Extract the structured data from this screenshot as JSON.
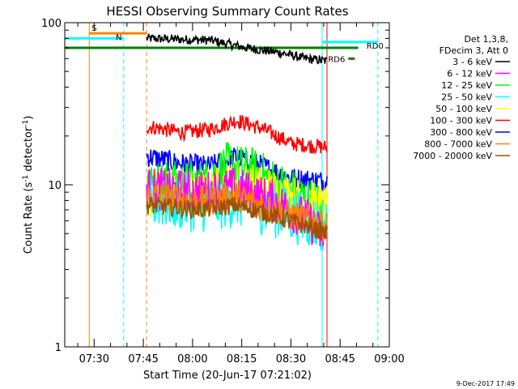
{
  "chart_data": {
    "type": "line",
    "title": "HESSI Observing Summary Count Rates",
    "xlabel": "Start Time (20-Jun-17 07:21:02)",
    "ylabel": "Count Rate (s",
    "ylabel_sup": "-1",
    "ylabel_tail": " detector",
    "ylabel_end": ")",
    "y_scale": "log",
    "ylim": [
      1,
      100
    ],
    "xlim": [
      "07:21:02",
      "09:00"
    ],
    "x_ticks": [
      "07:30",
      "07:45",
      "08:00",
      "08:15",
      "08:30",
      "08:45",
      "09:00"
    ],
    "y_ticks": [
      "1",
      "10",
      "100"
    ],
    "legend_position": "right",
    "legend_header": [
      "Det 1,3,8,",
      "FDecim 3, Att 0"
    ],
    "series": [
      {
        "name": "3 - 6 keV",
        "color": "#000000",
        "start": "07:46:00",
        "end": "08:41:00",
        "anchors": [
          [
            0,
            80
          ],
          [
            0.35,
            78
          ],
          [
            0.55,
            70
          ],
          [
            0.75,
            65
          ],
          [
            0.88,
            60
          ],
          [
            1.0,
            58
          ]
        ],
        "noise": 0.03
      },
      {
        "name": "6 - 12 keV",
        "color": "#ff00ff",
        "start": "07:46:00",
        "end": "08:41:00",
        "anchors": [
          [
            0,
            9.5
          ],
          [
            0.3,
            9.0
          ],
          [
            0.5,
            9.5
          ],
          [
            0.7,
            8.0
          ],
          [
            0.9,
            6.0
          ],
          [
            1.0,
            4.5
          ]
        ],
        "noise": 0.14
      },
      {
        "name": "12 - 25 keV",
        "color": "#00ff00",
        "start": "07:46:00",
        "end": "08:41:00",
        "anchors": [
          [
            0,
            10
          ],
          [
            0.3,
            10
          ],
          [
            0.45,
            13
          ],
          [
            0.6,
            12
          ],
          [
            0.8,
            9
          ],
          [
            1.0,
            7
          ]
        ],
        "noise": 0.16
      },
      {
        "name": "25 - 50 keV",
        "color": "#00ffff",
        "start": "07:46:00",
        "end": "08:41:00",
        "anchors": [
          [
            0,
            8
          ],
          [
            0.3,
            7.5
          ],
          [
            0.5,
            8.0
          ],
          [
            0.7,
            7.0
          ],
          [
            0.9,
            6.0
          ],
          [
            1.0,
            5.5
          ]
        ],
        "noise": 0.18
      },
      {
        "name": "50 - 100 keV",
        "color": "#ffff00",
        "start": "07:46:00",
        "end": "08:41:00",
        "anchors": [
          [
            0,
            9
          ],
          [
            0.3,
            8.5
          ],
          [
            0.5,
            10
          ],
          [
            0.7,
            9
          ],
          [
            0.9,
            7.5
          ],
          [
            1.0,
            7
          ]
        ],
        "noise": 0.16
      },
      {
        "name": "100 - 300 keV",
        "color": "#ff0000",
        "start": "07:46:00",
        "end": "08:41:00",
        "anchors": [
          [
            0,
            23
          ],
          [
            0.2,
            21
          ],
          [
            0.35,
            22
          ],
          [
            0.5,
            25
          ],
          [
            0.65,
            22
          ],
          [
            0.8,
            18
          ],
          [
            1.0,
            17
          ]
        ],
        "noise": 0.05
      },
      {
        "name": "300 - 800 keV",
        "color": "#0000ff",
        "start": "07:46:00",
        "end": "08:41:00",
        "anchors": [
          [
            0,
            15
          ],
          [
            0.2,
            13.5
          ],
          [
            0.35,
            13
          ],
          [
            0.5,
            15
          ],
          [
            0.65,
            13
          ],
          [
            0.8,
            11
          ],
          [
            1.0,
            10.5
          ]
        ],
        "noise": 0.07
      },
      {
        "name": "800 - 7000 keV",
        "color": "#ff8000",
        "start": "07:46:00",
        "end": "08:41:00",
        "anchors": [
          [
            0,
            8.5
          ],
          [
            0.3,
            8.0
          ],
          [
            0.5,
            8.5
          ],
          [
            0.7,
            7.0
          ],
          [
            0.9,
            6.0
          ],
          [
            1.0,
            5.5
          ]
        ],
        "noise": 0.1
      },
      {
        "name": "7000 - 20000 keV",
        "color": "#a05000",
        "start": "07:46:00",
        "end": "08:41:00",
        "anchors": [
          [
            0,
            7.5
          ],
          [
            0.3,
            7.0
          ],
          [
            0.5,
            7.5
          ],
          [
            0.7,
            6.5
          ],
          [
            0.9,
            5.5
          ],
          [
            1.0,
            5.0
          ]
        ],
        "noise": 0.06
      }
    ],
    "annotations": {
      "saa": {
        "label": "S",
        "color": "#ff8000",
        "start": "07:28:30",
        "end": "07:46:00",
        "level": 86
      },
      "night": {
        "label": "N",
        "color": "#00ffff",
        "start": "07:21:02",
        "end": "07:39:00",
        "level": 80
      },
      "rd0": {
        "label": "RD0",
        "color": "#00ffff",
        "start": "08:39:30",
        "end": "08:56:30",
        "level": 76
      },
      "rd6": {
        "label": "RD6",
        "color": "#008000",
        "start": "08:47:30",
        "end": "08:49:30",
        "level": 60
      },
      "attenuator_line": {
        "color": "#008000",
        "start": "07:21:02",
        "end": "08:50:30",
        "level": 70
      },
      "vlines": [
        {
          "t": "07:28:30",
          "color": "#ff8000",
          "dashed": false
        },
        {
          "t": "07:39:00",
          "color": "#00ffff",
          "dashed": true
        },
        {
          "t": "07:46:00",
          "color": "#ff8000",
          "dashed": true
        },
        {
          "t": "08:39:30",
          "color": "#00ffff",
          "dashed": false
        },
        {
          "t": "08:41:00",
          "color": "#ff0000",
          "dashed": false
        },
        {
          "t": "08:56:30",
          "color": "#00ffff",
          "dashed": true
        },
        {
          "t": "07:21:02",
          "color": "#00ffff",
          "dashed": false
        }
      ]
    },
    "footer_date": "9-Dec-2017 17:49"
  }
}
